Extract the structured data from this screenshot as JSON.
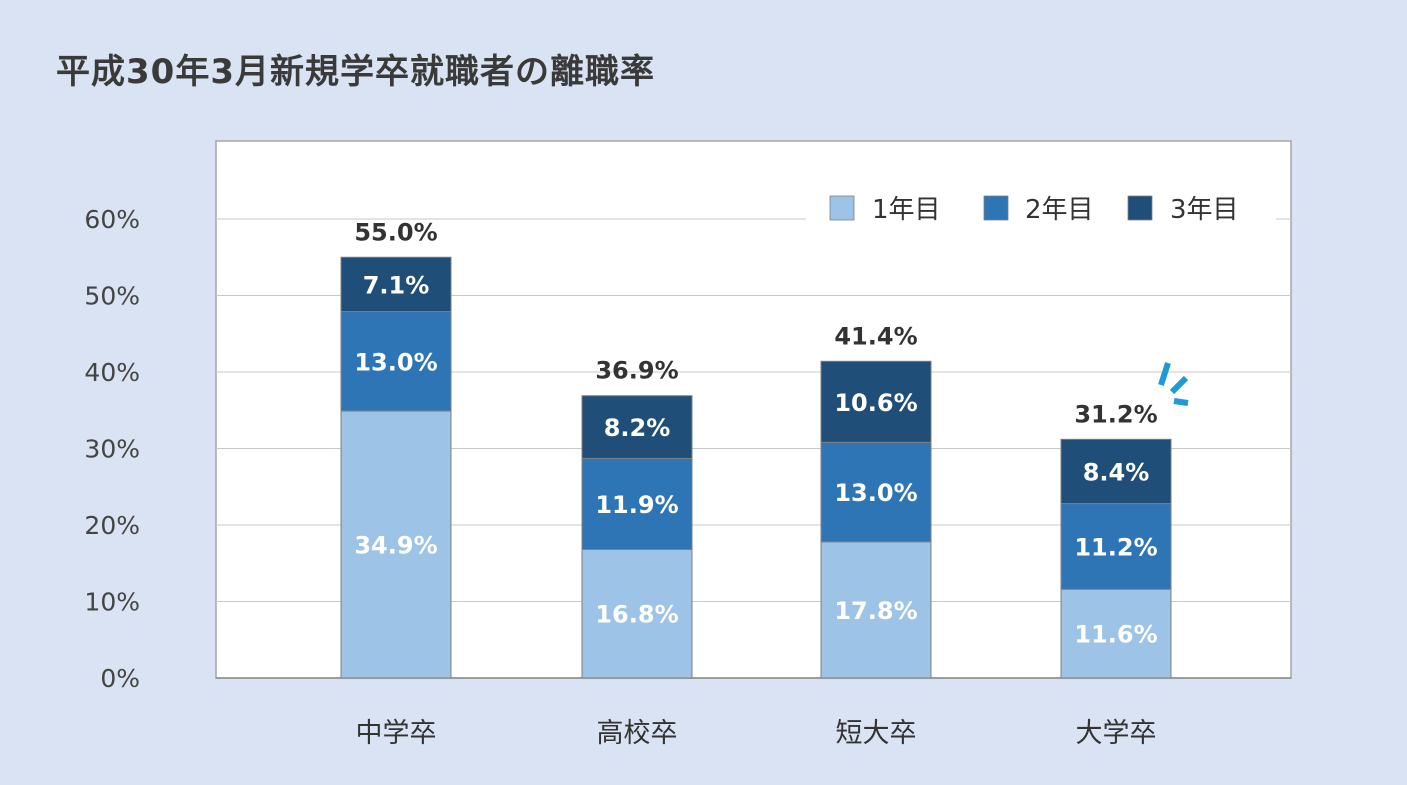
{
  "title": "平成30年3月新規学卒就職者の離職率",
  "chart_data": {
    "type": "bar",
    "stacked": true,
    "title": "平成30年3月新規学卒就職者の離職率",
    "xlabel": "",
    "ylabel": "",
    "ylim": [
      0,
      60
    ],
    "yticks": [
      "0%",
      "10%",
      "20%",
      "30%",
      "40%",
      "50%",
      "60%"
    ],
    "categories": [
      "中学卒",
      "高校卒",
      "短大卒",
      "大学卒"
    ],
    "series": [
      {
        "name": "1年目",
        "color": "#9dc3e6",
        "values": [
          34.9,
          16.8,
          17.8,
          11.6
        ],
        "labels": [
          "34.9%",
          "16.8%",
          "17.8%",
          "11.6%"
        ]
      },
      {
        "name": "2年目",
        "color": "#2e75b6",
        "values": [
          13.0,
          11.9,
          13.0,
          11.2
        ],
        "labels": [
          "13.0%",
          "11.9%",
          "13.0%",
          "11.2%"
        ]
      },
      {
        "name": "3年目",
        "color": "#1f4e79",
        "values": [
          7.1,
          8.2,
          10.6,
          8.4
        ],
        "labels": [
          "7.1%",
          "8.2%",
          "10.6%",
          "8.4%"
        ]
      }
    ],
    "totals": [
      "55.0%",
      "36.9%",
      "41.4%",
      "31.2%"
    ],
    "grid": true,
    "legend_position": "top-right"
  }
}
